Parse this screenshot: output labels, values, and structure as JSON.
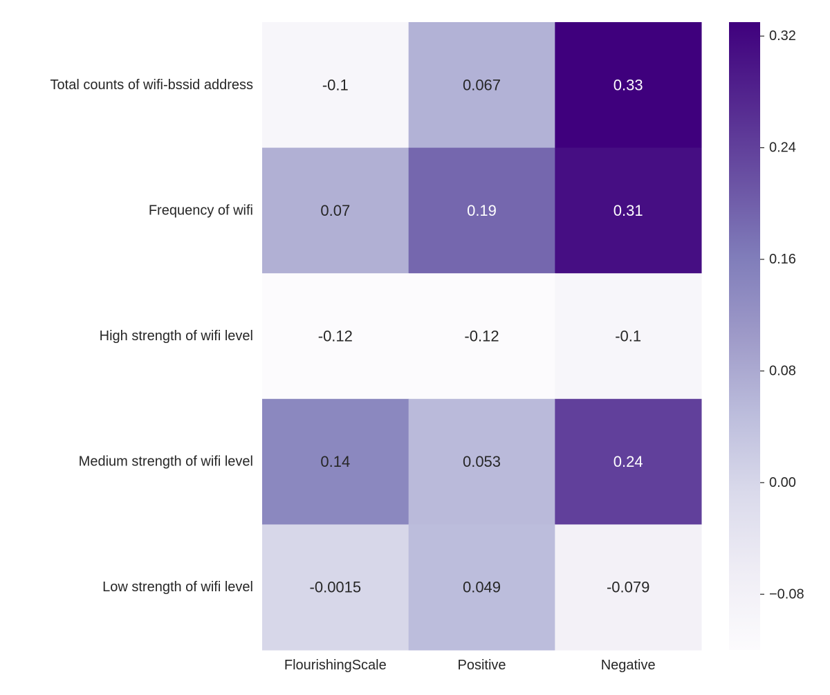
{
  "chart_data": {
    "type": "heatmap",
    "title": "",
    "xlabel": "",
    "ylabel": "",
    "x_categories": [
      "FlourishingScale",
      "Positive",
      "Negative"
    ],
    "y_categories": [
      "Total counts of wifi-bssid address",
      "Frequency of wifi",
      "High strength of wifi level",
      "Medium strength of wifi level",
      "Low strength of wifi level"
    ],
    "values": [
      [
        -0.1,
        0.067,
        0.33
      ],
      [
        0.07,
        0.19,
        0.31
      ],
      [
        -0.12,
        -0.12,
        -0.1
      ],
      [
        0.14,
        0.053,
        0.24
      ],
      [
        -0.0015,
        0.049,
        -0.079
      ]
    ],
    "cell_labels": [
      [
        "-0.1",
        "0.067",
        "0.33"
      ],
      [
        "0.07",
        "0.19",
        "0.31"
      ],
      [
        "-0.12",
        "-0.12",
        "-0.1"
      ],
      [
        "0.14",
        "0.053",
        "0.24"
      ],
      [
        "-0.0015",
        "0.049",
        "-0.079"
      ]
    ],
    "colorbar": {
      "vmin": -0.12,
      "vmax": 0.33,
      "ticks": [
        -0.08,
        0.0,
        0.08,
        0.16,
        0.24,
        0.32
      ],
      "tick_labels": [
        "−0.08",
        "0.00",
        "0.08",
        "0.16",
        "0.24",
        "0.32"
      ]
    },
    "colormap": {
      "name": "Purples",
      "stops": [
        [
          0.0,
          "#fcfbfd"
        ],
        [
          0.125,
          "#efedf5"
        ],
        [
          0.25,
          "#dadaeb"
        ],
        [
          0.375,
          "#bcbddc"
        ],
        [
          0.5,
          "#9e9ac8"
        ],
        [
          0.625,
          "#807dba"
        ],
        [
          0.75,
          "#6a51a3"
        ],
        [
          0.875,
          "#54278f"
        ],
        [
          1.0,
          "#3f007d"
        ]
      ]
    },
    "annotation_colors": {
      "dark": "#262626",
      "light": "#ffffff"
    }
  }
}
